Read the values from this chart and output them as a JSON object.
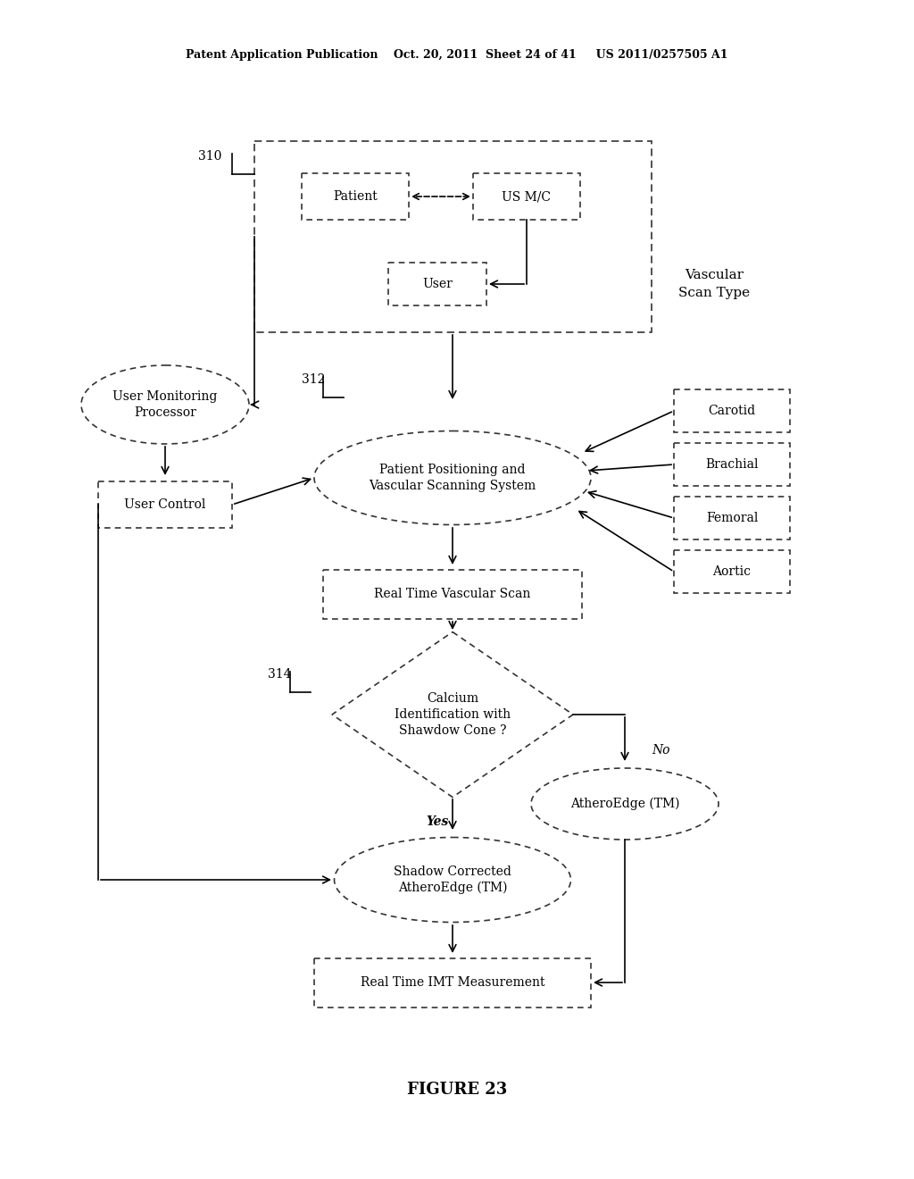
{
  "bg_color": "#ffffff",
  "header_text": "Patent Application Publication    Oct. 20, 2011  Sheet 24 of 41     US 2011/0257505 A1",
  "figure_caption": "FIGURE 23",
  "label_310": "310",
  "label_312": "312",
  "label_314": "314",
  "node_patient": "Patient",
  "node_usmc": "US M/C",
  "node_user": "User",
  "node_ump": "User Monitoring\nProcessor",
  "node_uc": "User Control",
  "node_ppvss": "Patient Positioning and\nVascular Scanning System",
  "node_rtvs": "Real Time Vascular Scan",
  "node_calcium": "Calcium\nIdentification with\nShawdow Cone ?",
  "node_atheroedge": "AtheroEdge (TM)",
  "node_shadow": "Shadow Corrected\nAtheroEdge (TM)",
  "node_imt": "Real Time IMT Measurement",
  "node_carotid": "Carotid",
  "node_brachial": "Brachial",
  "node_femoral": "Femoral",
  "node_aortic": "Aortic",
  "label_vascular": "Vascular\nScan Type",
  "label_yes": "Yes",
  "label_no": "No"
}
